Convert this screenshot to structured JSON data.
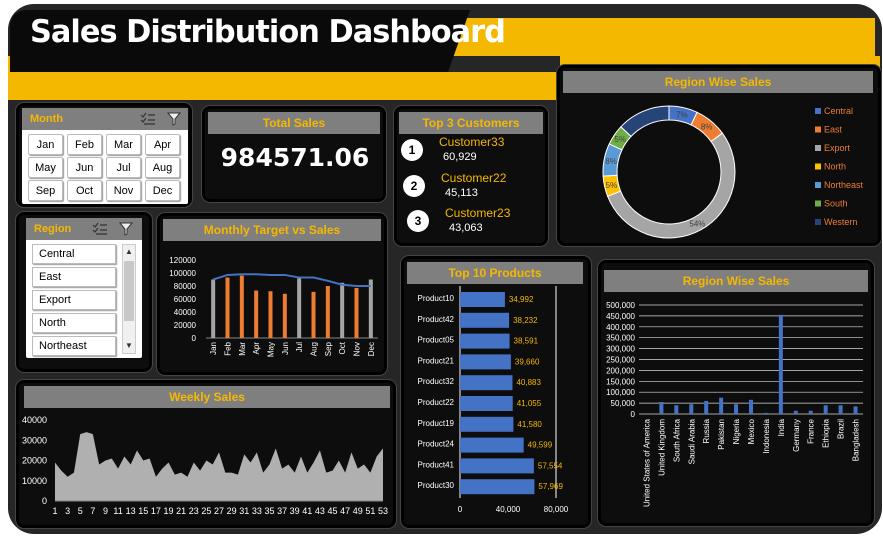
{
  "dashboard": {
    "title": "Sales Distribution Dashboard",
    "colors": {
      "accent": "#f5b800",
      "orange": "#ed7d31",
      "blue": "#4472c4",
      "gray": "#a5a5a5"
    }
  },
  "month_slicer": {
    "title": "Month",
    "items": [
      "Jan",
      "Feb",
      "Mar",
      "Apr",
      "May",
      "Jun",
      "Jul",
      "Aug",
      "Sep",
      "Oct",
      "Nov",
      "Dec"
    ]
  },
  "region_slicer": {
    "title": "Region",
    "items": [
      "Central",
      "East",
      "Export",
      "North",
      "Northeast"
    ]
  },
  "total_sales": {
    "title": "Total Sales",
    "value": "984571.06"
  },
  "top_customers": {
    "title": "Top 3 Customers",
    "items": [
      {
        "rank": "1",
        "name": "Customer33",
        "value": "60,929"
      },
      {
        "rank": "2",
        "name": "Customer22",
        "value": "45,113"
      },
      {
        "rank": "3",
        "name": "Customer23",
        "value": "43,063"
      }
    ]
  },
  "region_pie": {
    "title": "Region Wise Sales"
  },
  "monthly_chart": {
    "title": "Monthly Target vs Sales"
  },
  "weekly_chart": {
    "title": "Weekly  Sales"
  },
  "top_products": {
    "title": "Top 10 Products"
  },
  "region_bar": {
    "title": "Region Wise Sales"
  },
  "chart_data": [
    {
      "type": "pie",
      "title": "Region Wise Sales",
      "labels": [
        "Central",
        "East",
        "Export",
        "North",
        "Northeast",
        "South",
        "Western"
      ],
      "values": [
        7,
        8,
        54,
        5,
        8,
        5,
        13
      ],
      "colors": [
        "#4472c4",
        "#ed7d31",
        "#a5a5a5",
        "#ffc000",
        "#5b9bd5",
        "#70ad47",
        "#264478"
      ],
      "data_labels": [
        "7%",
        "8%",
        "54%",
        "5%",
        "8%",
        "5%",
        ""
      ],
      "legend": "right"
    },
    {
      "type": "bar",
      "title": "Monthly Target vs Sales",
      "categories": [
        "Jan",
        "Feb",
        "Mar",
        "Apr",
        "May",
        "Jun",
        "Jul",
        "Aug",
        "Sep",
        "Oct",
        "Nov",
        "Dec"
      ],
      "series": [
        {
          "values": [
            90000,
            93000,
            96000,
            73000,
            72000,
            68000,
            92000,
            71000,
            80000,
            85000,
            77000,
            90000
          ]
        },
        {
          "values": [
            90000,
            97000,
            98000,
            98000,
            97000,
            97000,
            93000,
            93000,
            88000,
            82000,
            80000,
            80000
          ]
        }
      ],
      "yticks": [
        "0",
        "20000",
        "40000",
        "60000",
        "80000",
        "100000",
        "120000"
      ],
      "ylim": [
        0,
        120000
      ]
    },
    {
      "type": "area",
      "title": "Weekly  Sales",
      "x": [
        1,
        2,
        3,
        4,
        5,
        6,
        7,
        8,
        9,
        10,
        11,
        12,
        13,
        14,
        15,
        16,
        17,
        18,
        19,
        20,
        21,
        22,
        23,
        24,
        25,
        26,
        27,
        28,
        29,
        30,
        31,
        32,
        33,
        34,
        35,
        36,
        37,
        38,
        39,
        40,
        41,
        42,
        43,
        44,
        45,
        46,
        47,
        48,
        49,
        50,
        51,
        52,
        53
      ],
      "values": [
        19000,
        15000,
        12000,
        14000,
        33000,
        34000,
        33000,
        18000,
        20000,
        21000,
        16000,
        22000,
        18000,
        25000,
        20000,
        21000,
        12000,
        16000,
        19000,
        13000,
        14000,
        12000,
        19000,
        15000,
        20000,
        18000,
        24000,
        14000,
        14000,
        13000,
        23000,
        19000,
        24000,
        14000,
        18000,
        26000,
        16000,
        18000,
        14000,
        22000,
        14000,
        19000,
        25000,
        14000,
        15000,
        20000,
        14000,
        24000,
        16000,
        18000,
        14000,
        22000,
        26000
      ],
      "xticks": [
        "1",
        "3",
        "5",
        "7",
        "9",
        "11",
        "13",
        "15",
        "17",
        "19",
        "21",
        "23",
        "25",
        "27",
        "29",
        "31",
        "33",
        "35",
        "37",
        "39",
        "41",
        "43",
        "45",
        "47",
        "49",
        "51",
        "53"
      ],
      "yticks": [
        "0",
        "10000",
        "20000",
        "30000",
        "40000"
      ],
      "ylim": [
        0,
        40000
      ]
    },
    {
      "type": "bar",
      "orientation": "horizontal",
      "title": "Top 10 Products",
      "categories": [
        "Product10",
        "Product42",
        "Product05",
        "Product21",
        "Product32",
        "Product22",
        "Product19",
        "Product24",
        "Product41",
        "Product30"
      ],
      "values": [
        34992,
        38232,
        38591,
        39660,
        40883,
        41055,
        41580,
        49599,
        57554,
        57969
      ],
      "data_labels": [
        "34,992",
        "38,232",
        "38,591",
        "39,660",
        "40,883",
        "41,055",
        "41,580",
        "49,599",
        "57,554",
        "57,969"
      ],
      "xticks": [
        "0",
        "40,000",
        "80,000"
      ],
      "xlim": [
        0,
        80000
      ]
    },
    {
      "type": "bar",
      "title": "Region Wise Sales",
      "categories": [
        "United States of America",
        "United Kingdom",
        "South Africa",
        "Saudi Arabia",
        "Russia",
        "Pakistan",
        "Nigeria",
        "Mexico",
        "Indonesia",
        "India",
        "Germany",
        "France",
        "Ethiopia",
        "Brazil",
        "Bangladesh"
      ],
      "values": [
        0,
        55000,
        40000,
        45000,
        60000,
        75000,
        45000,
        65000,
        5000,
        455000,
        15000,
        15000,
        40000,
        40000,
        35000
      ],
      "yticks": [
        "0",
        "50,000",
        "100,000",
        "150,000",
        "200,000",
        "250,000",
        "300,000",
        "350,000",
        "400,000",
        "450,000",
        "500,000"
      ],
      "ylim": [
        0,
        500000
      ]
    }
  ]
}
